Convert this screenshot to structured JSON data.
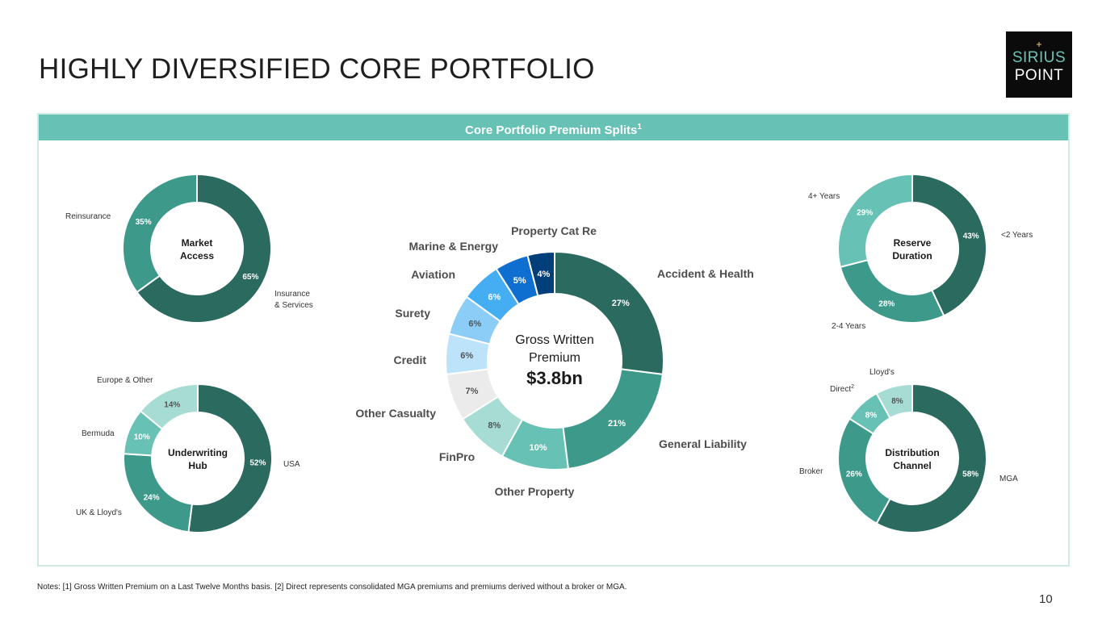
{
  "page": {
    "title": "HIGHLY DIVERSIFIED CORE PORTFOLIO",
    "banner": "Core Portfolio Premium Splits",
    "banner_sup": "1",
    "notes": "Notes: [1] Gross Written Premium on a Last Twelve Months basis. [2] Direct represents consolidated MGA premiums and premiums derived without a broker or MGA.",
    "page_number": "10",
    "logo": {
      "line1": "SIRIUS",
      "line2": "POINT"
    }
  },
  "colors": {
    "teal_dark": "#2b6a5f",
    "teal_mid": "#3d9a8b",
    "teal_light": "#67c1b4",
    "teal_pale": "#a6dcd4",
    "grey": "#ebebeb",
    "blue_pale": "#bde3fb",
    "blue_light": "#8bcdf6",
    "blue_mid": "#45aef3",
    "blue": "#0f6fd0",
    "navy": "#003f7a"
  },
  "chart_data": [
    {
      "type": "pie",
      "id": "market-access",
      "center_label": [
        "Market",
        "Access"
      ],
      "slices": [
        {
          "label": "Insurance & Services",
          "value": 65,
          "value_label": "65%",
          "color": "#2b6a5f"
        },
        {
          "label": "Reinsurance",
          "value": 35,
          "value_label": "35%",
          "color": "#3d9a8b"
        }
      ]
    },
    {
      "type": "pie",
      "id": "underwriting-hub",
      "center_label": [
        "Underwriting",
        "Hub"
      ],
      "slices": [
        {
          "label": "USA",
          "value": 52,
          "value_label": "52%",
          "color": "#2b6a5f"
        },
        {
          "label": "UK & Lloyd's",
          "value": 24,
          "value_label": "24%",
          "color": "#3d9a8b"
        },
        {
          "label": "Bermuda",
          "value": 10,
          "value_label": "10%",
          "color": "#67c1b4"
        },
        {
          "label": "Europe & Other",
          "value": 14,
          "value_label": "14%",
          "color": "#a6dcd4"
        }
      ]
    },
    {
      "type": "pie",
      "id": "gross-written-premium",
      "center_label": [
        "Gross Written",
        "Premium"
      ],
      "center_value": "$3.8bn",
      "slices": [
        {
          "label": "Accident & Health",
          "value": 27,
          "value_label": "27%",
          "color": "#2b6a5f"
        },
        {
          "label": "General Liability",
          "value": 21,
          "value_label": "21%",
          "color": "#3d9a8b"
        },
        {
          "label": "Other Property",
          "value": 10,
          "value_label": "10%",
          "color": "#67c1b4"
        },
        {
          "label": "FinPro",
          "value": 8,
          "value_label": "8%",
          "color": "#a6dcd4"
        },
        {
          "label": "Other Casualty",
          "value": 7,
          "value_label": "7%",
          "color": "#ebebeb"
        },
        {
          "label": "Credit",
          "value": 6,
          "value_label": "6%",
          "color": "#bde3fb"
        },
        {
          "label": "Surety",
          "value": 6,
          "value_label": "6%",
          "color": "#8bcdf6"
        },
        {
          "label": "Aviation",
          "value": 6,
          "value_label": "6%",
          "color": "#45aef3"
        },
        {
          "label": "Marine & Energy",
          "value": 5,
          "value_label": "5%",
          "color": "#0f6fd0"
        },
        {
          "label": "Property Cat Re",
          "value": 4,
          "value_label": "4%",
          "color": "#003f7a"
        }
      ]
    },
    {
      "type": "pie",
      "id": "reserve-duration",
      "center_label": [
        "Reserve",
        "Duration"
      ],
      "slices": [
        {
          "label": "<2 Years",
          "value": 43,
          "value_label": "43%",
          "color": "#2b6a5f"
        },
        {
          "label": "2-4 Years",
          "value": 28,
          "value_label": "28%",
          "color": "#3d9a8b"
        },
        {
          "label": "4+ Years",
          "value": 29,
          "value_label": "29%",
          "color": "#67c1b4"
        }
      ]
    },
    {
      "type": "pie",
      "id": "distribution-channel",
      "center_label": [
        "Distribution",
        "Channel"
      ],
      "slices": [
        {
          "label": "MGA",
          "value": 58,
          "value_label": "58%",
          "color": "#2b6a5f"
        },
        {
          "label": "Broker",
          "value": 26,
          "value_label": "26%",
          "color": "#3d9a8b"
        },
        {
          "label": "Direct",
          "label_sup": "2",
          "value": 8,
          "value_label": "8%",
          "color": "#67c1b4"
        },
        {
          "label": "Lloyd's",
          "value": 8,
          "value_label": "8%",
          "color": "#a6dcd4"
        }
      ]
    }
  ]
}
